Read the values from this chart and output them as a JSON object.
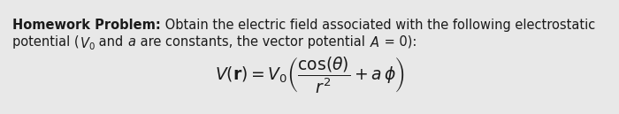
{
  "background_color": "#e8e8e8",
  "text_color": "#1a1a1a",
  "font_size": 10.5,
  "formula_font_size": 13.5,
  "line1_bold": "Homework Problem:",
  "line1_normal": " Obtain the electric field associated with the following electrostatic",
  "line2": "potential (",
  "line2_V0": "V",
  "line2_mid": " and ",
  "line2_a": "a",
  "line2_end": " are constants, the vector potential ",
  "line2_A": "A",
  "line2_final": " = 0):",
  "formula_str": "$V(\\mathbf{r}) = V_0 \\left( \\dfrac{\\cos(\\theta)}{r^2} + a\\,\\phi \\right)$"
}
